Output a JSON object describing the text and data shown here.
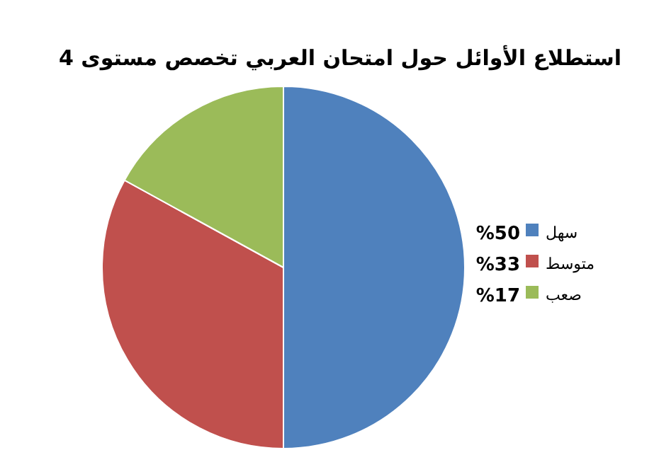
{
  "chart_data": {
    "type": "pie",
    "title": "استطلاع الأوائل حول امتحان العربي تخصص مستوى 4",
    "categories": [
      "سهل",
      "متوسط",
      "صعب"
    ],
    "values": [
      50,
      33,
      17
    ],
    "colors": [
      "#4f81bd",
      "#c0504d",
      "#9bbb59"
    ],
    "value_labels": [
      "%50",
      "%33",
      "%17"
    ],
    "legend": "right"
  }
}
